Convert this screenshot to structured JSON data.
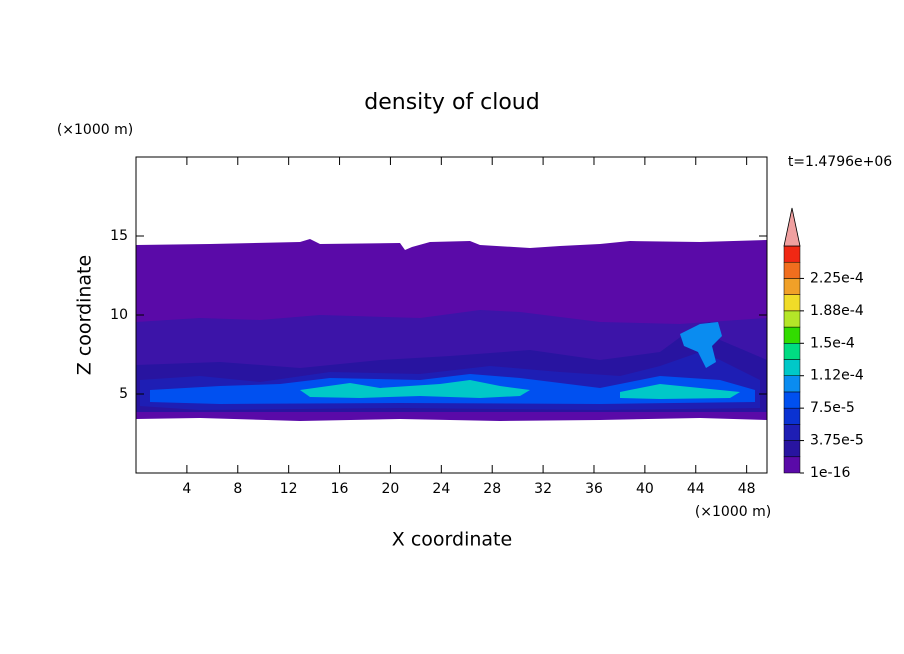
{
  "chart_data": {
    "type": "contour",
    "title": "density of cloud",
    "x_label": "X coordinate",
    "y_label": "Z coordinate",
    "x_unit": "(×1000 m)",
    "y_unit": "(×1000 m)",
    "annotation": "t=1.4796e+06",
    "xlim": [
      0,
      49.6
    ],
    "xticks": [
      4,
      8,
      12,
      16,
      20,
      24,
      28,
      32,
      36,
      40,
      44,
      48
    ],
    "ylim": [
      0,
      20
    ],
    "yticks": [
      5,
      10,
      15
    ],
    "colorbar": {
      "levels": [
        {
          "value": 1e-16,
          "label": "1e-16"
        },
        {
          "value": 3.75e-05,
          "label": "3.75e-5"
        },
        {
          "value": 7.5e-05,
          "label": "7.5e-5"
        },
        {
          "value": 0.000112,
          "label": "1.12e-4"
        },
        {
          "value": 0.00015,
          "label": "1.5e-4"
        },
        {
          "value": 0.000188,
          "label": "1.88e-4"
        },
        {
          "value": 0.000225,
          "label": "2.25e-4"
        }
      ],
      "colors": [
        "#5a0aa8",
        "#2814a0",
        "#1e1eb4",
        "#0a32d2",
        "#0050f0",
        "#0a8cf0",
        "#00c8c8",
        "#00dc82",
        "#32dc00",
        "#b4e628",
        "#f0dc28",
        "#f0a028",
        "#f06e1e",
        "#f02814"
      ],
      "extend_color": "#f0a0a0"
    }
  }
}
